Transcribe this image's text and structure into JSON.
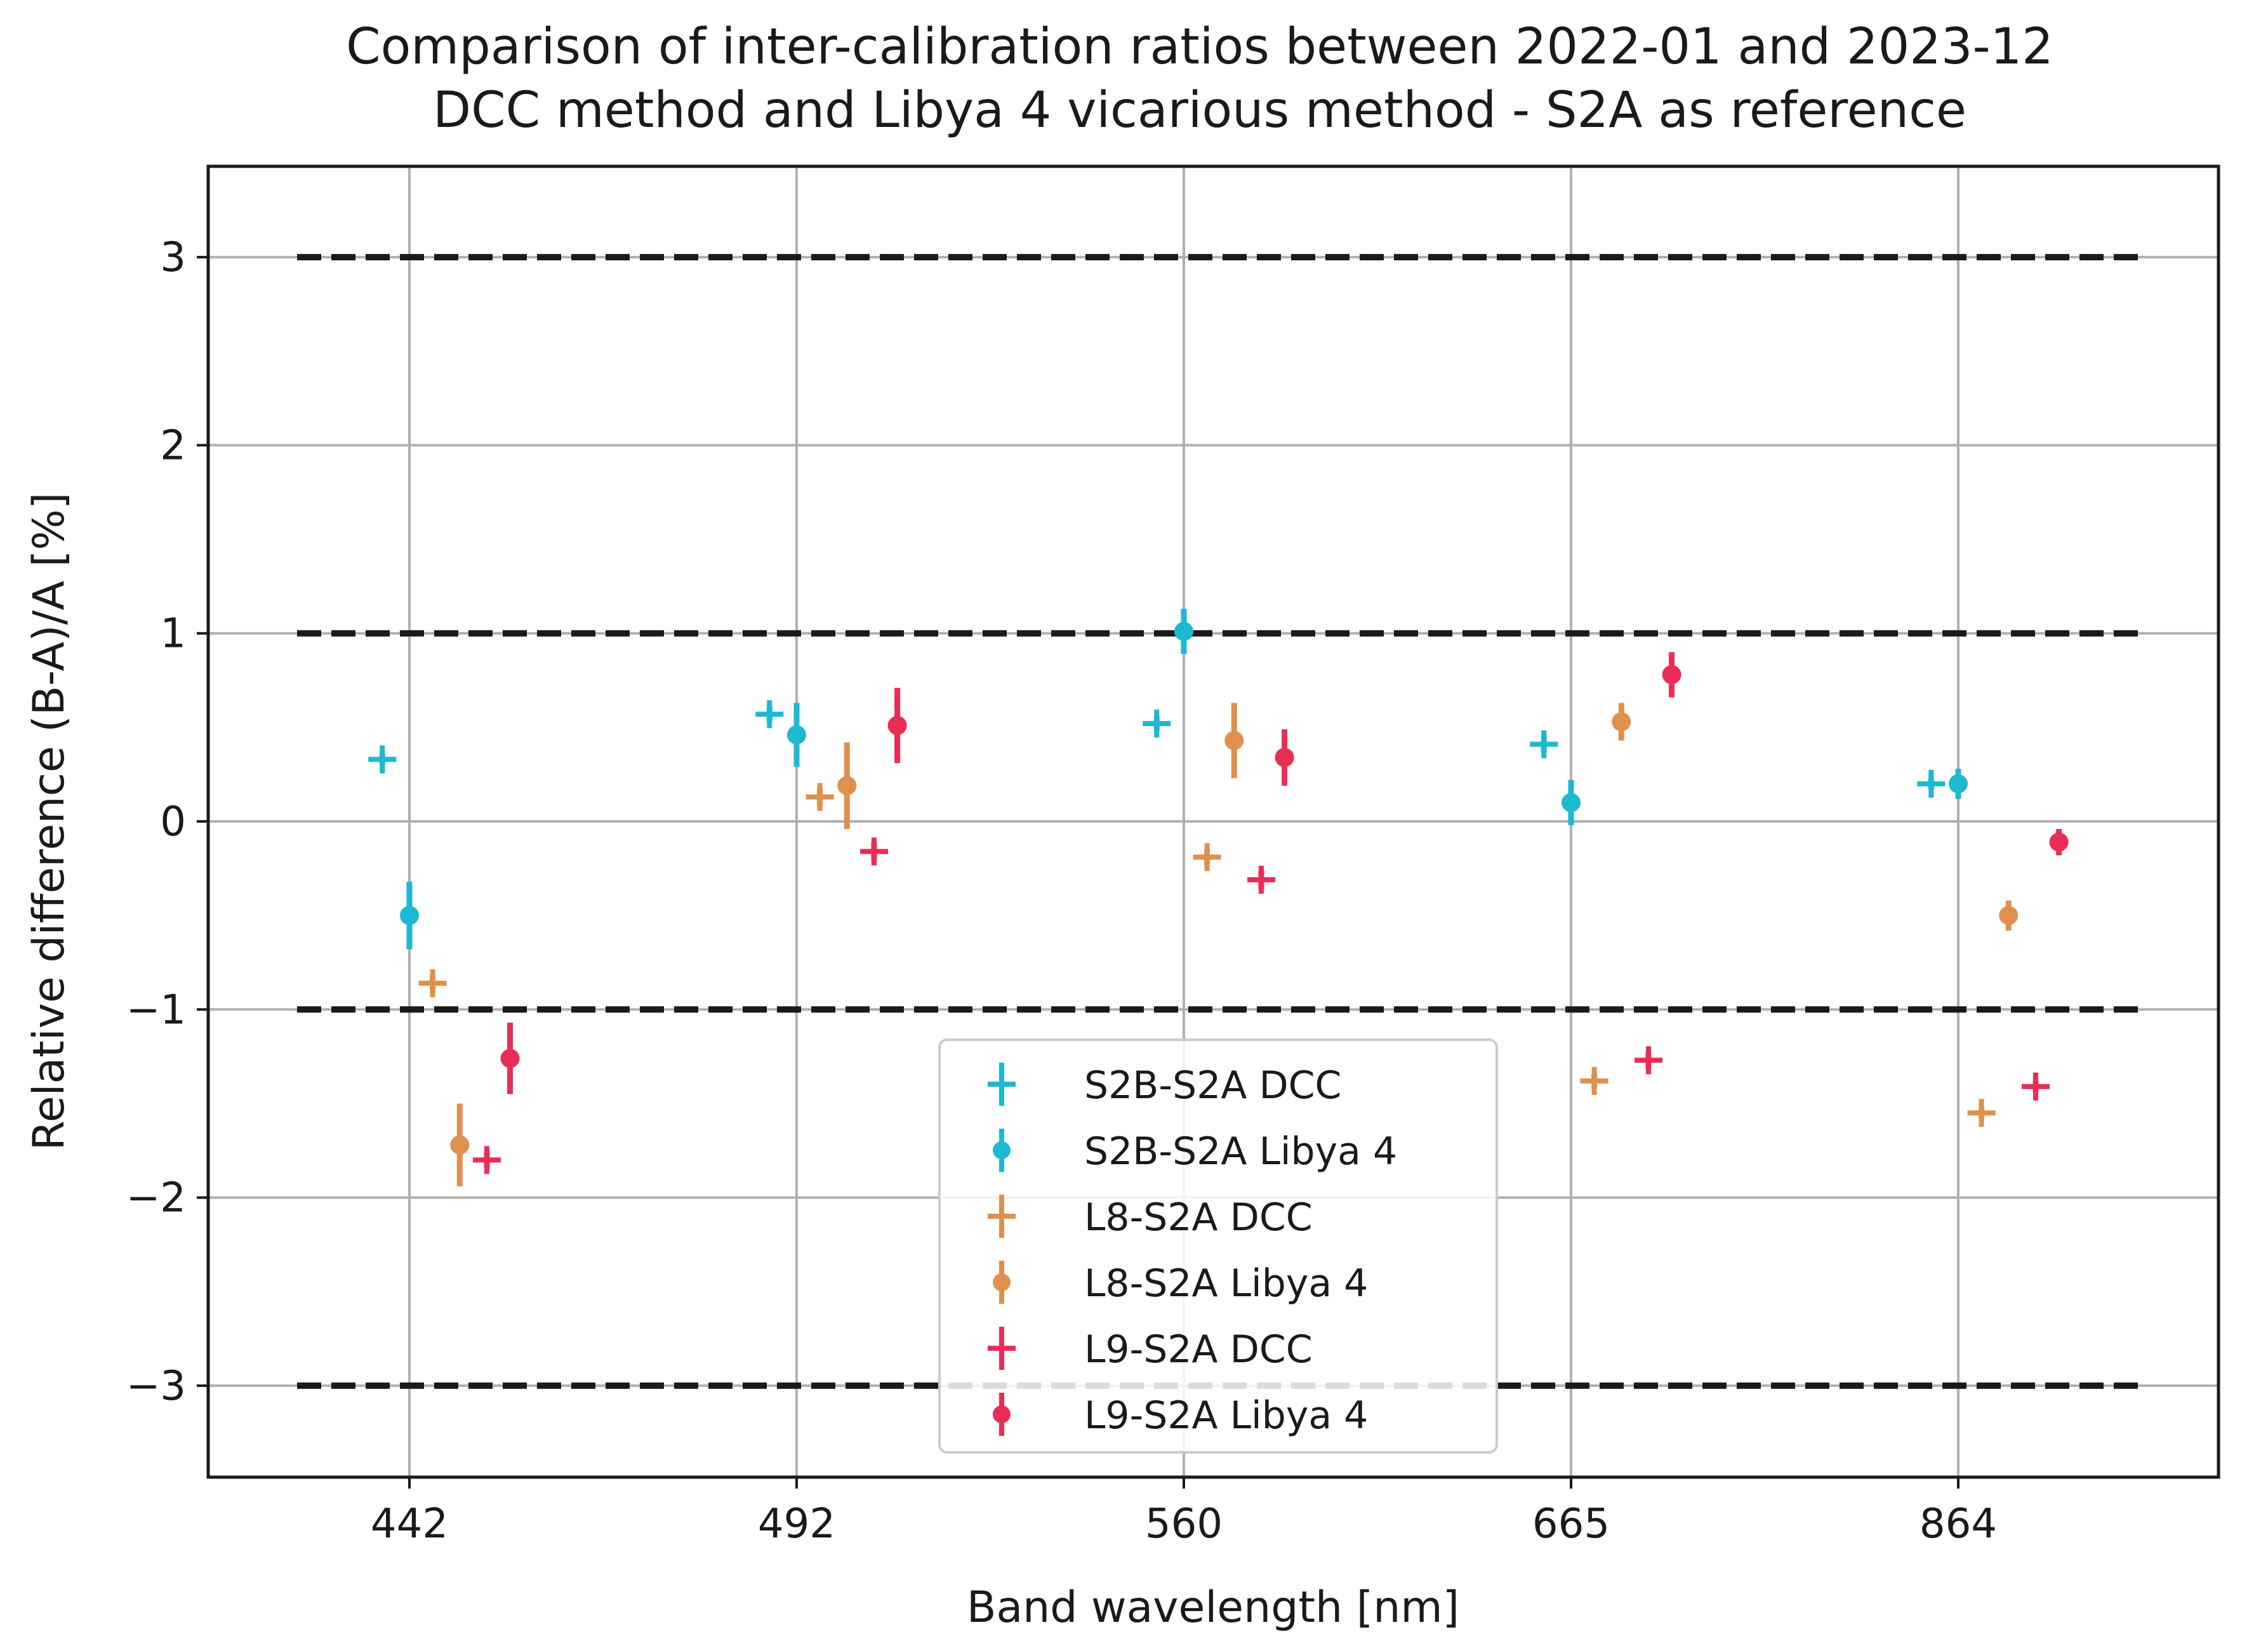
{
  "chart_data": {
    "type": "scatter",
    "title": "Comparison of inter-calibration ratios between 2022-01 and 2023-12",
    "subtitle": "DCC method and Libya 4 vicarious method - S2A as reference",
    "xlabel": "Band wavelength [nm]",
    "ylabel": "Relative difference (B-A)/A [%]",
    "categories": [
      "442",
      "492",
      "560",
      "665",
      "864"
    ],
    "ylim": [
      -3.5,
      3.5
    ],
    "yticks": [
      {
        "value": 3,
        "label": "3"
      },
      {
        "value": 2,
        "label": "2"
      },
      {
        "value": 1,
        "label": "1"
      },
      {
        "value": 0,
        "label": "0"
      },
      {
        "value": -1,
        "label": "−1"
      },
      {
        "value": -2,
        "label": "−2"
      },
      {
        "value": -3,
        "label": "−3"
      }
    ],
    "reference_lines": [
      3,
      1,
      -1,
      -3
    ],
    "grid": true,
    "legend_position": "lower-center",
    "series": [
      {
        "name": "S2B-S2A DCC",
        "marker": "plus",
        "color": "#1db8d2",
        "offset": -0.07,
        "values": [
          0.33,
          0.57,
          0.52,
          0.41,
          0.2
        ],
        "errors": [
          0.03,
          0.04,
          0.04,
          0.04,
          0.03
        ]
      },
      {
        "name": "S2B-S2A Libya 4",
        "marker": "circle",
        "color": "#1db8d2",
        "offset": 0.0,
        "values": [
          -0.5,
          0.46,
          1.01,
          0.1,
          0.2
        ],
        "errors": [
          0.18,
          0.17,
          0.12,
          0.12,
          0.08
        ]
      },
      {
        "name": "L8-S2A DCC",
        "marker": "plus",
        "color": "#e0904d",
        "offset": 0.06,
        "values": [
          -0.86,
          0.13,
          -0.19,
          -1.38,
          -1.55
        ],
        "errors": [
          0.04,
          0.05,
          0.04,
          0.04,
          0.03
        ]
      },
      {
        "name": "L8-S2A Libya 4",
        "marker": "circle",
        "color": "#e0904d",
        "offset": 0.13,
        "values": [
          -1.72,
          0.19,
          0.43,
          0.53,
          -0.5
        ],
        "errors": [
          0.22,
          0.23,
          0.2,
          0.1,
          0.08
        ]
      },
      {
        "name": "L9-S2A DCC",
        "marker": "plus",
        "color": "#ea2d55",
        "offset": 0.2,
        "values": [
          -1.8,
          -0.16,
          -0.31,
          -1.27,
          -1.41
        ],
        "errors": [
          0.04,
          0.05,
          0.05,
          0.04,
          0.03
        ]
      },
      {
        "name": "L9-S2A Libya 4",
        "marker": "circle",
        "color": "#ea2d55",
        "offset": 0.26,
        "values": [
          -1.26,
          0.51,
          0.34,
          0.78,
          -0.11
        ],
        "errors": [
          0.19,
          0.2,
          0.15,
          0.12,
          0.07
        ]
      }
    ]
  }
}
